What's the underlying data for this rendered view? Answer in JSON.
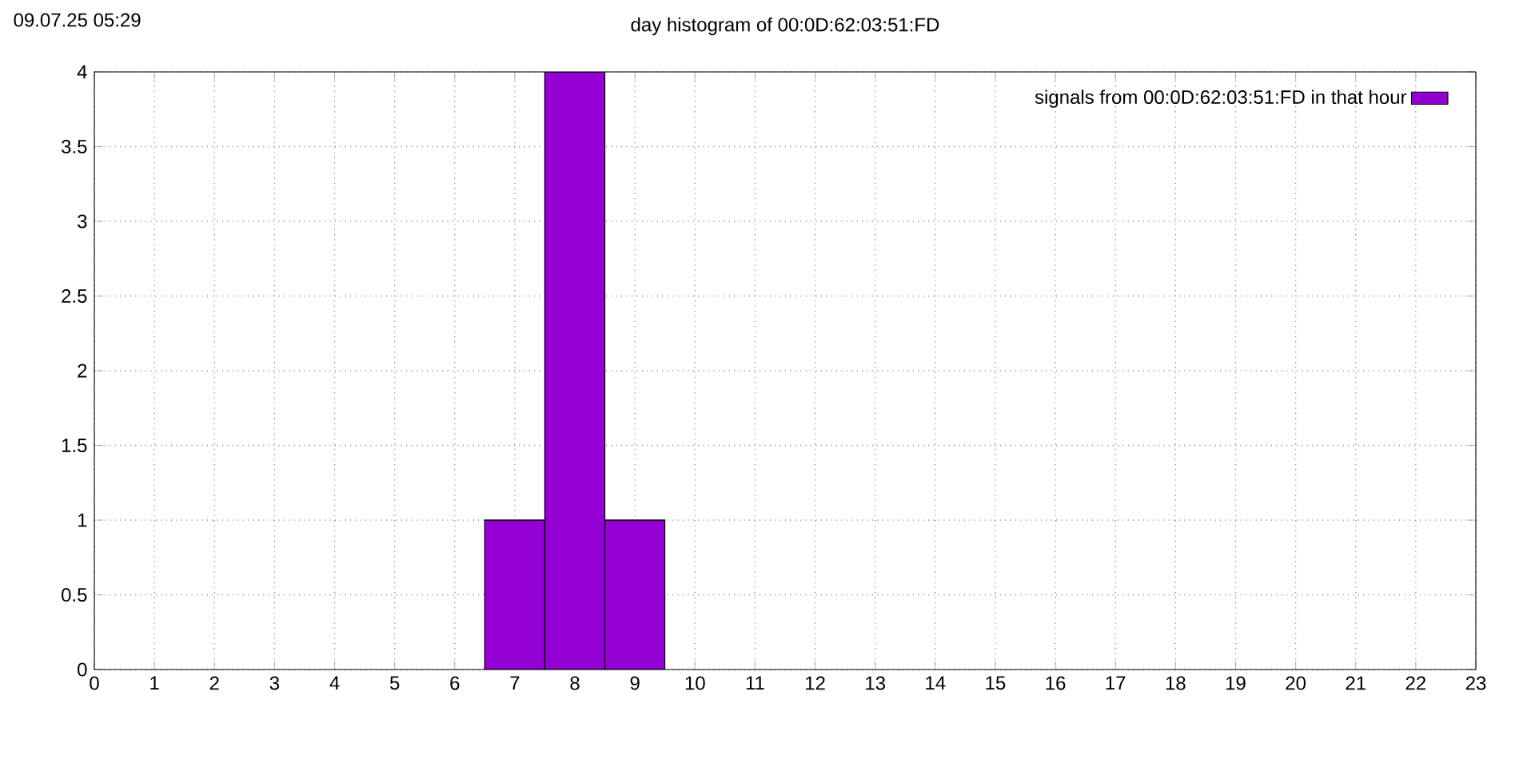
{
  "chart_data": {
    "type": "histogram",
    "title": "day histogram of 00:0D:62:03:51:FD",
    "annotations": [
      "09.07.25 05:29"
    ],
    "bins": [
      6.5,
      7.5,
      8.5,
      9.5
    ],
    "series": [
      {
        "name": "signals from 00:0D:62:03:51:FD in that hour",
        "color": "#9400d3",
        "values": [
          1,
          4,
          1
        ]
      }
    ],
    "xlim": [
      0,
      23
    ],
    "xticks": [
      0,
      1,
      2,
      3,
      4,
      5,
      6,
      7,
      8,
      9,
      10,
      11,
      12,
      13,
      14,
      15,
      16,
      17,
      18,
      19,
      20,
      21,
      22,
      23
    ],
    "ylim": [
      0,
      4
    ],
    "yticks": [
      0,
      0.5,
      1,
      1.5,
      2,
      2.5,
      3,
      3.5,
      4
    ],
    "grid": true,
    "legend": "top right"
  }
}
